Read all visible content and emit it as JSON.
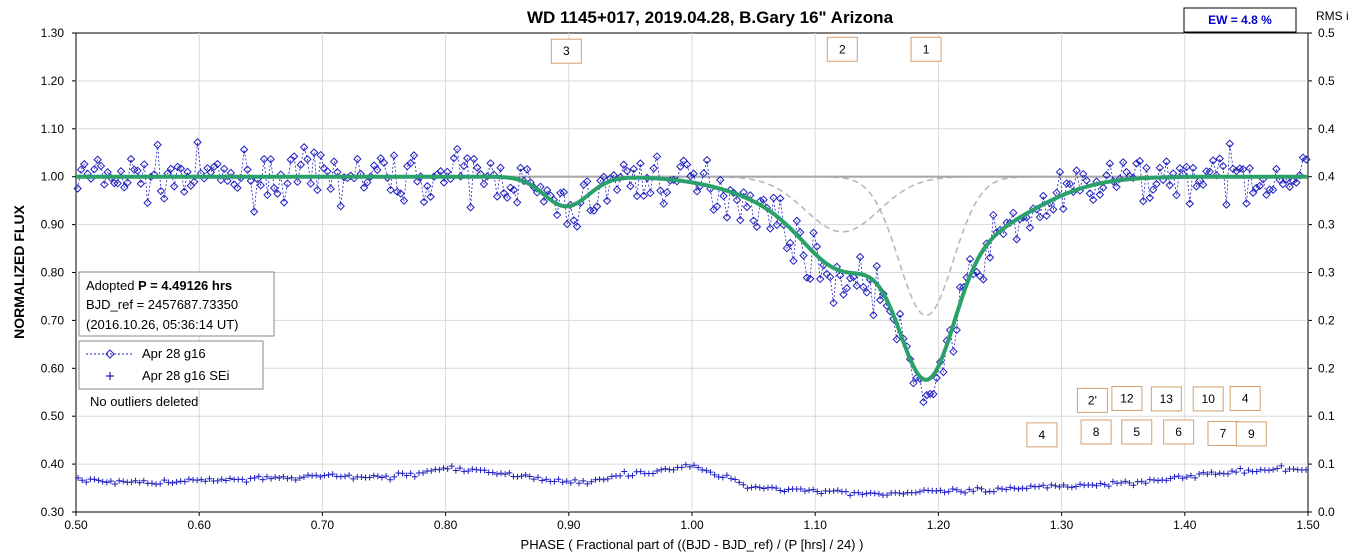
{
  "chart_data": {
    "type": "scatter",
    "title": "WD 1145+017, 2019.04.28, B.Gary 16\" Arizona",
    "xlabel": "PHASE ( Fractional part of ((BJD - BJD_ref) / (P [hrs] / 24) )",
    "ylabel": "NORMALIZED FLUX",
    "y2label": "RMS i",
    "xlim": [
      0.5,
      1.5
    ],
    "ylim": [
      0.3,
      1.3
    ],
    "y2lim": [
      0.0,
      0.5
    ],
    "x_ticks": [
      "0.50",
      "0.60",
      "0.70",
      "0.80",
      "0.90",
      "1.00",
      "1.10",
      "1.20",
      "1.30",
      "1.40",
      "1.50"
    ],
    "y_ticks": [
      "0.30",
      "0.40",
      "0.50",
      "0.60",
      "0.70",
      "0.80",
      "0.90",
      "1.00",
      "1.10",
      "1.20",
      "1.30"
    ],
    "y2_ticks": [
      "0.0",
      "0.1",
      "0.1",
      "0.2",
      "0.2",
      "0.3",
      "0.3",
      "0.4",
      "0.4",
      "0.5",
      "0.5"
    ],
    "ew_label": "EW =  4.8 %",
    "info": {
      "period_prefix": "Adopted ",
      "period": "P = 4.49126 hrs",
      "bjd_ref": "BJD_ref = 2457687.73350",
      "date": "(2016.10.26, 05:36:14 UT)"
    },
    "legend": {
      "series1": "Apr 28 g16",
      "series2": "Apr 28 g16 SEi"
    },
    "note": "No outliers deleted",
    "dip_labels": [
      {
        "text": "3",
        "x": 0.898,
        "y": 1.262
      },
      {
        "text": "2",
        "x": 1.122,
        "y": 1.266
      },
      {
        "text": "1",
        "x": 1.19,
        "y": 1.266
      },
      {
        "text": "2'",
        "x": 1.325,
        "y": 0.533
      },
      {
        "text": "12",
        "x": 1.353,
        "y": 0.537
      },
      {
        "text": "13",
        "x": 1.385,
        "y": 0.536
      },
      {
        "text": "10",
        "x": 1.419,
        "y": 0.536
      },
      {
        "text": "4",
        "x": 1.449,
        "y": 0.537
      },
      {
        "text": "4",
        "x": 1.284,
        "y": 0.461
      },
      {
        "text": "8",
        "x": 1.328,
        "y": 0.467
      },
      {
        "text": "5",
        "x": 1.361,
        "y": 0.467
      },
      {
        "text": "6",
        "x": 1.395,
        "y": 0.467
      },
      {
        "text": "7",
        "x": 1.431,
        "y": 0.464
      },
      {
        "text": "9",
        "x": 1.454,
        "y": 0.463
      }
    ],
    "model_dips": [
      {
        "center": 0.898,
        "depth": 0.062,
        "width": 0.018
      },
      {
        "center": 1.122,
        "depth": 0.115,
        "width": 0.03
      },
      {
        "center": 1.19,
        "depth": 0.29,
        "width": 0.022
      },
      {
        "center": 1.215,
        "depth": 0.13,
        "width": 0.055
      },
      {
        "center": 1.09,
        "depth": 0.06,
        "width": 0.05
      }
    ],
    "data_dips": [
      {
        "center": 0.898,
        "depth": 0.07,
        "width": 0.02
      },
      {
        "center": 1.12,
        "depth": 0.13,
        "width": 0.03
      },
      {
        "center": 1.19,
        "depth": 0.3,
        "width": 0.022
      },
      {
        "center": 1.215,
        "depth": 0.14,
        "width": 0.055
      },
      {
        "center": 1.09,
        "depth": 0.06,
        "width": 0.05
      }
    ],
    "series": [
      {
        "name": "Apr 28 g16",
        "n_points": 370,
        "baseline": 1.0,
        "scatter": 0.05
      },
      {
        "name": "Apr 28 g16 SEi",
        "rms_profile_x": [
          0.5,
          0.55,
          0.6,
          0.65,
          0.7,
          0.75,
          0.8,
          0.85,
          0.9,
          0.95,
          1.0,
          1.05,
          1.1,
          1.15,
          1.2,
          1.25,
          1.3,
          1.35,
          1.4,
          1.45,
          1.5
        ],
        "rms_profile_y": [
          0.37,
          0.36,
          0.365,
          0.368,
          0.375,
          0.372,
          0.39,
          0.38,
          0.36,
          0.38,
          0.395,
          0.352,
          0.345,
          0.338,
          0.342,
          0.345,
          0.355,
          0.36,
          0.375,
          0.385,
          0.39
        ]
      }
    ],
    "colors": {
      "data": "#2020c0",
      "model": "#2aa06a",
      "components": "#b8b8b8",
      "baseline": "#a8a8a8",
      "label_border": "#d4a070"
    },
    "grid": true
  }
}
